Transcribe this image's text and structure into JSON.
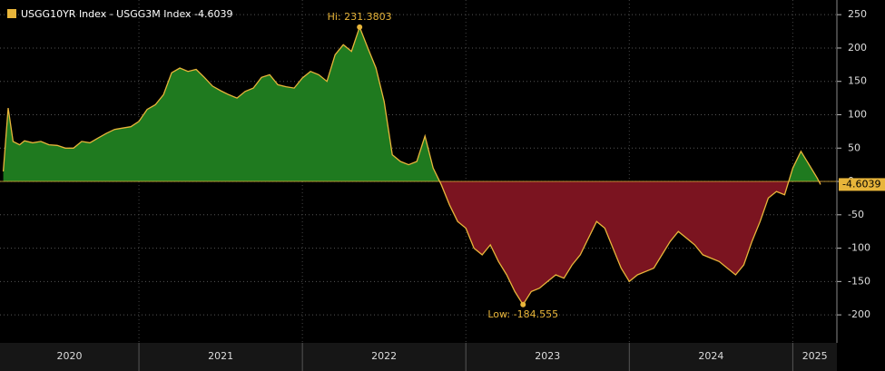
{
  "chart_data": {
    "type": "area",
    "series": [
      {
        "name": "USGG10YR Index - USGG3M Index -4.6039",
        "color": "#e8b53a",
        "positive_color": "#1f7a1f",
        "negative_color": "#7b1420",
        "x": [
          2020.17,
          2020.2,
          2020.23,
          2020.27,
          2020.3,
          2020.35,
          2020.4,
          2020.45,
          2020.5,
          2020.55,
          2020.6,
          2020.65,
          2020.7,
          2020.75,
          2020.8,
          2020.85,
          2020.9,
          2020.95,
          2021,
          2021.05,
          2021.1,
          2021.15,
          2021.2,
          2021.25,
          2021.3,
          2021.35,
          2021.4,
          2021.45,
          2021.5,
          2021.55,
          2021.6,
          2021.65,
          2021.7,
          2021.75,
          2021.8,
          2021.85,
          2021.9,
          2021.95,
          2022,
          2022.05,
          2022.1,
          2022.15,
          2022.2,
          2022.25,
          2022.3,
          2022.35,
          2022.4,
          2022.45,
          2022.5,
          2022.55,
          2022.6,
          2022.65,
          2022.7,
          2022.75,
          2022.8,
          2022.85,
          2022.9,
          2022.95,
          2023,
          2023.05,
          2023.1,
          2023.15,
          2023.2,
          2023.25,
          2023.3,
          2023.35,
          2023.4,
          2023.45,
          2023.5,
          2023.55,
          2023.6,
          2023.65,
          2023.7,
          2023.75,
          2023.8,
          2023.85,
          2023.9,
          2023.95,
          2024,
          2024.05,
          2024.1,
          2024.15,
          2024.2,
          2024.25,
          2024.3,
          2024.35,
          2024.4,
          2024.45,
          2024.5,
          2024.55,
          2024.6,
          2024.65,
          2024.7,
          2024.75,
          2024.8,
          2024.85,
          2024.9,
          2024.95,
          2025,
          2025.05,
          2025.1,
          2025.15,
          2025.17
        ],
        "values": [
          15,
          110,
          60,
          55,
          61,
          58,
          60,
          55,
          54,
          50,
          50,
          60,
          58,
          65,
          72,
          78,
          80,
          82,
          90,
          108,
          115,
          130,
          163,
          170,
          165,
          168,
          156,
          143,
          136,
          130,
          125,
          135,
          140,
          156,
          160,
          145,
          142,
          140,
          155,
          165,
          160,
          150,
          190,
          205,
          195,
          231.3803,
          200,
          170,
          120,
          40,
          30,
          25,
          30,
          68,
          20,
          -5,
          -35,
          -60,
          -70,
          -100,
          -110,
          -95,
          -120,
          -140,
          -165,
          -184.555,
          -165,
          -160,
          -150,
          -140,
          -145,
          -125,
          -110,
          -85,
          -60,
          -70,
          -100,
          -130,
          -150,
          -140,
          -135,
          -130,
          -110,
          -90,
          -75,
          -85,
          -95,
          -110,
          -115,
          -120,
          -130,
          -140,
          -125,
          -90,
          -60,
          -25,
          -15,
          -20,
          20,
          45,
          25,
          5,
          -4.6039
        ],
        "last_label": "-4.6039"
      }
    ],
    "annotations": {
      "high": "Hi: 231.3803",
      "low": "Low: -184.555"
    },
    "xlim": [
      2020.15,
      2025.27
    ],
    "xticks": [
      {
        "value": 2020,
        "label": "2020"
      },
      {
        "value": 2021,
        "label": "2021"
      },
      {
        "value": 2022,
        "label": "2022"
      },
      {
        "value": 2023,
        "label": "2023"
      },
      {
        "value": 2024,
        "label": "2024"
      },
      {
        "value": 2025,
        "label": "2025"
      }
    ],
    "ylim": [
      -242,
      272
    ],
    "yticks": [
      250,
      200,
      150,
      100,
      50,
      0,
      -50,
      -100,
      -150,
      -200
    ],
    "grid": true
  }
}
